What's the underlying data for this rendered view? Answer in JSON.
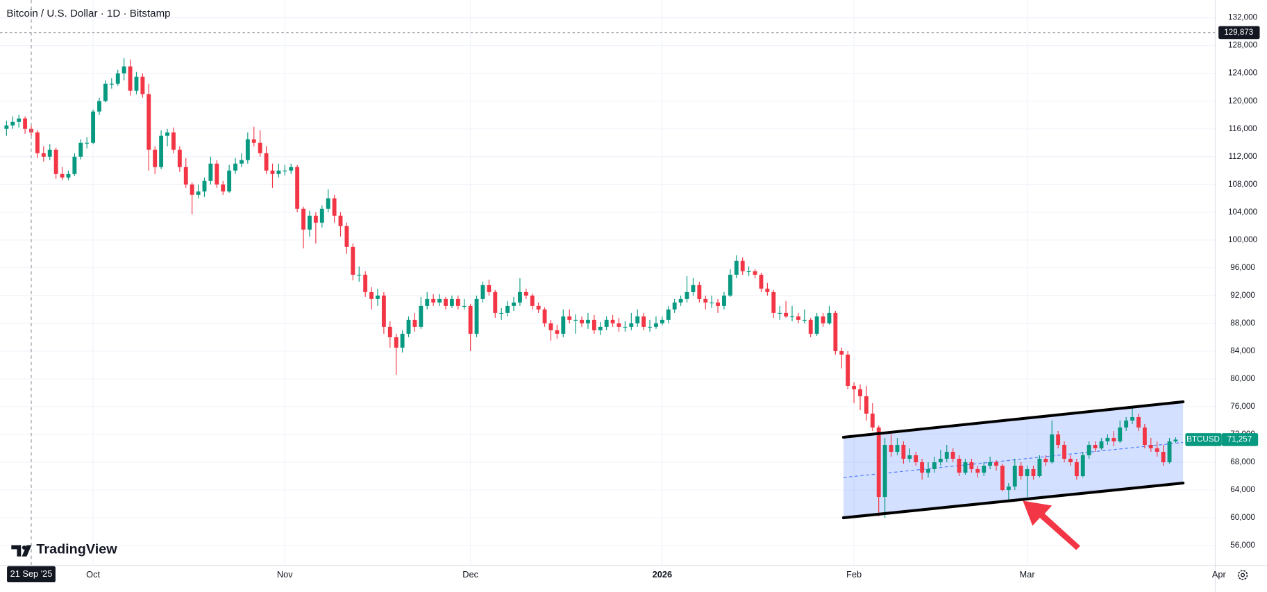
{
  "chart_data": {
    "type": "candlestick",
    "title": "Bitcoin / U.S. Dollar · 1D · Bitstamp",
    "brand": "TradingView",
    "up_color": "#089981",
    "down_color": "#f23645",
    "xlim": [
      -1.05,
      195.4
    ],
    "ylim": [
      53150,
      134560
    ],
    "yticks": [
      {
        "value": 56000,
        "label": "56,000"
      },
      {
        "value": 60000,
        "label": "60,000"
      },
      {
        "value": 64000,
        "label": "64,000"
      },
      {
        "value": 68000,
        "label": "68,000"
      },
      {
        "value": 72000,
        "label": "72,000"
      },
      {
        "value": 76000,
        "label": "76,000"
      },
      {
        "value": 80000,
        "label": "80,000"
      },
      {
        "value": 84000,
        "label": "84,000"
      },
      {
        "value": 88000,
        "label": "88,000"
      },
      {
        "value": 92000,
        "label": "92,000"
      },
      {
        "value": 96000,
        "label": "96,000"
      },
      {
        "value": 100000,
        "label": "100,000"
      },
      {
        "value": 104000,
        "label": "104,000"
      },
      {
        "value": 108000,
        "label": "108,000"
      },
      {
        "value": 112000,
        "label": "112,000"
      },
      {
        "value": 116000,
        "label": "116,000"
      },
      {
        "value": 120000,
        "label": "120,000"
      },
      {
        "value": 124000,
        "label": "124,000"
      },
      {
        "value": 128000,
        "label": "128,000"
      },
      {
        "value": 132000,
        "label": "132,000"
      }
    ],
    "xticks": [
      {
        "value": 14,
        "label": "Oct"
      },
      {
        "value": 45,
        "label": "Nov"
      },
      {
        "value": 75,
        "label": "Dec"
      },
      {
        "value": 106,
        "label": "2026"
      },
      {
        "value": 137,
        "label": "Feb"
      },
      {
        "value": 165,
        "label": "Mar"
      },
      {
        "value": 196,
        "label": "Apr"
      }
    ],
    "grid": true,
    "crosshair": {
      "x": 4,
      "label": "21 Sep '25"
    },
    "price_line": {
      "value": 129873,
      "label": "129,873"
    },
    "last_price": {
      "name": "BTCUSD",
      "value": 71257,
      "label": "71,257"
    },
    "channel": {
      "x": [
        135.3,
        190.2
      ],
      "upper": [
        71600,
        76700
      ],
      "lower": [
        60000,
        65000
      ],
      "color": "#2962ff"
    },
    "candles": [
      [
        116000,
        117200,
        115000,
        116500
      ],
      [
        116500,
        117800,
        116000,
        117000
      ],
      [
        117000,
        118000,
        116200,
        117500
      ],
      [
        117500,
        117800,
        115300,
        116000
      ],
      [
        116000,
        116500,
        115000,
        115500
      ],
      [
        115500,
        115800,
        111800,
        112500
      ],
      [
        112500,
        113500,
        111300,
        112000
      ],
      [
        112000,
        113800,
        111500,
        113000
      ],
      [
        113000,
        113300,
        108800,
        109500
      ],
      [
        109500,
        110500,
        108600,
        109000
      ],
      [
        109000,
        110000,
        108600,
        109500
      ],
      [
        109500,
        112500,
        109200,
        112000
      ],
      [
        112000,
        114500,
        111600,
        114000
      ],
      [
        114000,
        114800,
        113200,
        114000
      ],
      [
        114000,
        118800,
        113800,
        118500
      ],
      [
        118500,
        120500,
        118000,
        120000
      ],
      [
        120000,
        123000,
        119800,
        122500
      ],
      [
        122500,
        123300,
        121800,
        122500
      ],
      [
        122500,
        124500,
        122200,
        124000
      ],
      [
        124000,
        126200,
        123000,
        125000
      ],
      [
        125000,
        126000,
        120800,
        121500
      ],
      [
        121500,
        124200,
        121000,
        123500
      ],
      [
        123500,
        124000,
        120500,
        121000
      ],
      [
        121000,
        122500,
        110000,
        113000
      ],
      [
        113000,
        113500,
        109500,
        110500
      ],
      [
        110500,
        115800,
        110200,
        115000
      ],
      [
        115000,
        116000,
        113500,
        115500
      ],
      [
        115500,
        116200,
        112500,
        113000
      ],
      [
        113000,
        113500,
        109800,
        110500
      ],
      [
        110500,
        111800,
        107500,
        108000
      ],
      [
        108000,
        108300,
        103700,
        106500
      ],
      [
        106500,
        108000,
        106000,
        107000
      ],
      [
        107000,
        109000,
        106200,
        108500
      ],
      [
        108500,
        112000,
        108000,
        111000
      ],
      [
        111000,
        111500,
        107500,
        108000
      ],
      [
        108000,
        108500,
        106500,
        107000
      ],
      [
        107000,
        110800,
        106800,
        110000
      ],
      [
        110000,
        111800,
        109500,
        111000
      ],
      [
        111000,
        112500,
        110500,
        111500
      ],
      [
        111500,
        115500,
        111000,
        114500
      ],
      [
        114500,
        116300,
        113500,
        114000
      ],
      [
        114000,
        115800,
        112000,
        112500
      ],
      [
        112500,
        113500,
        109500,
        110000
      ],
      [
        110000,
        111000,
        107500,
        109500
      ],
      [
        109500,
        111000,
        109000,
        110000
      ],
      [
        110000,
        110800,
        109300,
        110000
      ],
      [
        110000,
        111000,
        109500,
        110500
      ],
      [
        110500,
        110800,
        104000,
        104500
      ],
      [
        104500,
        104800,
        98800,
        101500
      ],
      [
        101500,
        104200,
        100500,
        103500
      ],
      [
        103500,
        104000,
        99500,
        102500
      ],
      [
        102500,
        105000,
        101800,
        104500
      ],
      [
        104500,
        107300,
        104000,
        106000
      ],
      [
        106000,
        106500,
        102500,
        103500
      ],
      [
        103500,
        104000,
        100500,
        102000
      ],
      [
        102000,
        102500,
        98000,
        99000
      ],
      [
        99000,
        99500,
        94200,
        95000
      ],
      [
        95000,
        96200,
        94000,
        95000
      ],
      [
        95000,
        95500,
        91800,
        92500
      ],
      [
        92500,
        93200,
        90000,
        91500
      ],
      [
        91500,
        93000,
        90500,
        92000
      ],
      [
        92000,
        92500,
        86500,
        87500
      ],
      [
        87500,
        88300,
        84500,
        86000
      ],
      [
        86000,
        86500,
        80600,
        84500
      ],
      [
        84500,
        87000,
        83800,
        86500
      ],
      [
        86500,
        89000,
        86000,
        88500
      ],
      [
        88500,
        89500,
        86800,
        87500
      ],
      [
        87500,
        91800,
        87200,
        90500
      ],
      [
        90500,
        92500,
        90000,
        91500
      ],
      [
        91500,
        92200,
        90500,
        91000
      ],
      [
        91000,
        92200,
        90500,
        91500
      ],
      [
        91500,
        91800,
        90000,
        90500
      ],
      [
        90500,
        92000,
        90200,
        91500
      ],
      [
        91500,
        92000,
        90000,
        90500
      ],
      [
        90500,
        91500,
        90000,
        90500
      ],
      [
        90500,
        90800,
        84000,
        86500
      ],
      [
        86500,
        92000,
        86000,
        91500
      ],
      [
        91500,
        94000,
        91000,
        93500
      ],
      [
        93500,
        94300,
        92000,
        92500
      ],
      [
        92500,
        92800,
        88800,
        89500
      ],
      [
        89500,
        90200,
        88500,
        89500
      ],
      [
        89500,
        91200,
        89000,
        90500
      ],
      [
        90500,
        91800,
        89800,
        91000
      ],
      [
        91000,
        94500,
        90500,
        92500
      ],
      [
        92500,
        93000,
        91500,
        92000
      ],
      [
        92000,
        92300,
        90000,
        90500
      ],
      [
        90500,
        91000,
        89500,
        90000
      ],
      [
        90000,
        90300,
        87500,
        88000
      ],
      [
        88000,
        88500,
        85500,
        87000
      ],
      [
        87000,
        87800,
        85800,
        86500
      ],
      [
        86500,
        90000,
        86000,
        89000
      ],
      [
        89000,
        90000,
        88000,
        88500
      ],
      [
        88500,
        89300,
        86500,
        88500
      ],
      [
        88500,
        89000,
        87500,
        88000
      ],
      [
        88000,
        89500,
        87200,
        88500
      ],
      [
        88500,
        89200,
        86500,
        87000
      ],
      [
        87000,
        88200,
        86300,
        87500
      ],
      [
        87500,
        89000,
        87000,
        88500
      ],
      [
        88500,
        89200,
        87500,
        88000
      ],
      [
        88000,
        88800,
        86800,
        87500
      ],
      [
        87500,
        88300,
        86800,
        87500
      ],
      [
        87500,
        89500,
        87000,
        88000
      ],
      [
        88000,
        90000,
        87500,
        89000
      ],
      [
        89000,
        89500,
        87000,
        87500
      ],
      [
        87500,
        88500,
        86800,
        87500
      ],
      [
        87500,
        89000,
        87200,
        88000
      ],
      [
        88000,
        89000,
        87700,
        88500
      ],
      [
        88500,
        90500,
        88000,
        90000
      ],
      [
        90000,
        91500,
        89500,
        91000
      ],
      [
        91000,
        92000,
        90500,
        91500
      ],
      [
        91500,
        94800,
        91000,
        92500
      ],
      [
        92500,
        94500,
        92000,
        93500
      ],
      [
        93500,
        94000,
        91000,
        91500
      ],
      [
        91500,
        92000,
        90000,
        91000
      ],
      [
        91000,
        92000,
        90200,
        91000
      ],
      [
        91000,
        91500,
        89500,
        90500
      ],
      [
        90500,
        92500,
        90000,
        92000
      ],
      [
        92000,
        95800,
        91800,
        95000
      ],
      [
        95000,
        97800,
        94500,
        97000
      ],
      [
        97000,
        97500,
        95000,
        95500
      ],
      [
        95500,
        96200,
        94800,
        95500
      ],
      [
        95500,
        95800,
        94500,
        95000
      ],
      [
        95000,
        95300,
        92500,
        93000
      ],
      [
        93000,
        93800,
        92000,
        92500
      ],
      [
        92500,
        92800,
        88800,
        89500
      ],
      [
        89500,
        90500,
        88500,
        89500
      ],
      [
        89500,
        91200,
        88800,
        89000
      ],
      [
        89000,
        90500,
        88300,
        89000
      ],
      [
        89000,
        89500,
        88000,
        88500
      ],
      [
        88500,
        90000,
        88000,
        88500
      ],
      [
        88500,
        88800,
        86000,
        86500
      ],
      [
        86500,
        89500,
        86200,
        89000
      ],
      [
        89000,
        89500,
        87500,
        88000
      ],
      [
        88000,
        90500,
        87800,
        89500
      ],
      [
        89500,
        89800,
        83500,
        84000
      ],
      [
        84000,
        84500,
        81500,
        83500
      ],
      [
        83500,
        84000,
        78500,
        79000
      ],
      [
        79000,
        79500,
        76500,
        78500
      ],
      [
        78500,
        79200,
        75500,
        77500
      ],
      [
        77500,
        79000,
        74000,
        75000
      ],
      [
        75000,
        76500,
        72500,
        73000
      ],
      [
        73000,
        73300,
        60200,
        63000
      ],
      [
        63000,
        71500,
        60000,
        70500
      ],
      [
        70500,
        72000,
        68800,
        69500
      ],
      [
        69500,
        71500,
        69000,
        70500
      ],
      [
        70500,
        71000,
        67800,
        68500
      ],
      [
        68500,
        70000,
        68000,
        69000
      ],
      [
        69000,
        69500,
        67500,
        68000
      ],
      [
        68000,
        68500,
        65500,
        66500
      ],
      [
        66500,
        68000,
        65800,
        67000
      ],
      [
        67000,
        68800,
        66500,
        68000
      ],
      [
        68000,
        69800,
        67500,
        68500
      ],
      [
        68500,
        70500,
        68000,
        69500
      ],
      [
        69500,
        70000,
        68000,
        68500
      ],
      [
        68500,
        69000,
        66000,
        66500
      ],
      [
        66500,
        68500,
        66200,
        68000
      ],
      [
        68000,
        68500,
        66500,
        67000
      ],
      [
        67000,
        67500,
        65800,
        66500
      ],
      [
        66500,
        68000,
        66000,
        67500
      ],
      [
        67500,
        68800,
        67000,
        68000
      ],
      [
        68000,
        68300,
        66800,
        67500
      ],
      [
        67500,
        67800,
        63800,
        64000
      ],
      [
        64000,
        65000,
        62500,
        64500
      ],
      [
        64500,
        68500,
        64000,
        67500
      ],
      [
        67500,
        68000,
        65500,
        66000
      ],
      [
        66000,
        67500,
        63000,
        67000
      ],
      [
        67000,
        67500,
        65500,
        66000
      ],
      [
        66000,
        69000,
        65800,
        68500
      ],
      [
        68500,
        69000,
        67500,
        68000
      ],
      [
        68000,
        74000,
        67800,
        72000
      ],
      [
        72000,
        72500,
        70000,
        70500
      ],
      [
        70500,
        71000,
        68000,
        68500
      ],
      [
        68500,
        69000,
        67500,
        68000
      ],
      [
        68000,
        68500,
        65500,
        66000
      ],
      [
        66000,
        69500,
        65800,
        69000
      ],
      [
        69000,
        71000,
        68500,
        70500
      ],
      [
        70500,
        71000,
        69500,
        70000
      ],
      [
        70000,
        71500,
        69800,
        71000
      ],
      [
        71000,
        72000,
        70500,
        71500
      ],
      [
        71500,
        72500,
        70300,
        71000
      ],
      [
        71000,
        74000,
        70800,
        73000
      ],
      [
        73000,
        74500,
        72500,
        74000
      ],
      [
        74000,
        75800,
        73500,
        74500
      ],
      [
        74500,
        75000,
        72500,
        73000
      ],
      [
        73000,
        73500,
        70000,
        70500
      ],
      [
        70500,
        71500,
        69500,
        70000
      ],
      [
        70000,
        71000,
        68800,
        69500
      ],
      [
        69500,
        70500,
        67500,
        68000
      ],
      [
        68000,
        71500,
        67800,
        71000
      ],
      [
        71000,
        71600,
        70800,
        71257
      ]
    ]
  }
}
